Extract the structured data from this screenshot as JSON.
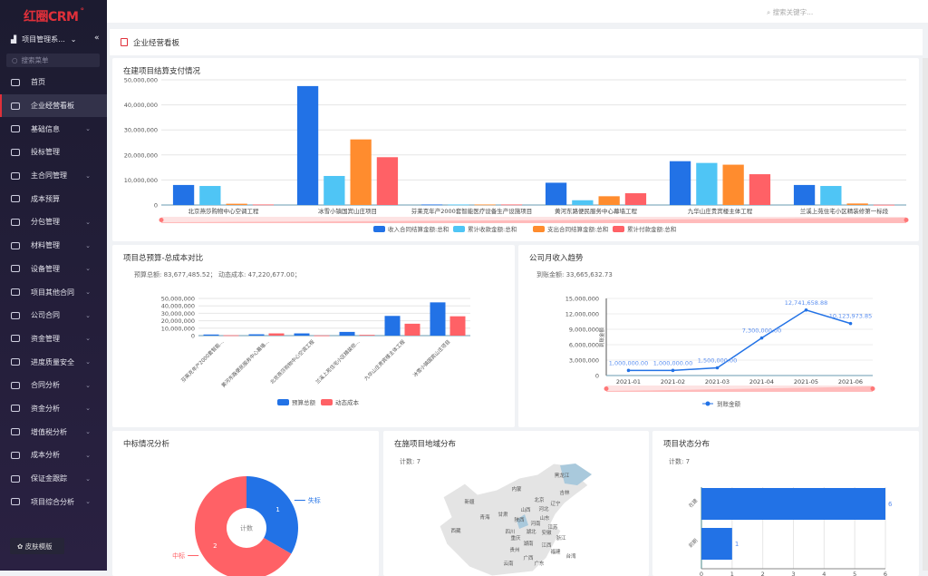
{
  "sidebar": {
    "logo": "红圈CRM",
    "system": "项目管理系...",
    "search_placeholder": "搜索菜单",
    "skin_button": "皮肤模版",
    "items": [
      {
        "label": "首页"
      },
      {
        "label": "企业经营看板",
        "active": true
      },
      {
        "label": "基础信息",
        "expand": true
      },
      {
        "label": "投标管理"
      },
      {
        "label": "主合同管理",
        "expand": true
      },
      {
        "label": "成本预算"
      },
      {
        "label": "分包管理",
        "expand": true
      },
      {
        "label": "材料管理",
        "expand": true
      },
      {
        "label": "设备管理",
        "expand": true
      },
      {
        "label": "项目其他合同",
        "expand": true
      },
      {
        "label": "公司合同",
        "expand": true
      },
      {
        "label": "资金管理",
        "expand": true
      },
      {
        "label": "进度质量安全",
        "expand": true
      },
      {
        "label": "合同分析",
        "expand": true
      },
      {
        "label": "资金分析",
        "expand": true
      },
      {
        "label": "增值税分析",
        "expand": true
      },
      {
        "label": "成本分析",
        "expand": true
      },
      {
        "label": "保证金跟踪",
        "expand": true
      },
      {
        "label": "项目综合分析",
        "expand": true
      }
    ]
  },
  "topbar": {
    "search_placeholder": "搜索关键字..."
  },
  "breadcrumb": {
    "title": "企业经营看板"
  },
  "colors": {
    "blue": "#2272e6",
    "lightblue": "#4fc5f5",
    "orange": "#ff8c2e",
    "red": "#ff6166",
    "accent": "#e0303a"
  },
  "chart_data": [
    {
      "type": "bar",
      "title": "在建项目结算支付情况",
      "ylim": [
        0,
        50000000
      ],
      "yticks": [
        "0",
        "10,000,000",
        "20,000,000",
        "30,000,000",
        "40,000,000",
        "50,000,000"
      ],
      "categories": [
        "北京燕莎购物中心空调工程",
        "冰雪小镇国宾山庄项目",
        "芬莱克年产2000套智能医疗设备生产设施项目",
        "黄河东路便民服务中心幕墙工程",
        "九华山庄贵宾楼主体工程",
        "兰溪上苑住宅小区精装修第一标段"
      ],
      "series": [
        {
          "name": "收入合同结算金额:总和",
          "values": [
            8000000,
            47500000,
            200000,
            8900000,
            17500000,
            8000000
          ]
        },
        {
          "name": "累计收款金额:总和",
          "values": [
            7600000,
            11600000,
            200000,
            1900000,
            16800000,
            7600000
          ]
        },
        {
          "name": "支出合同结算金额:总和",
          "values": [
            500000,
            26200000,
            200000,
            3500000,
            16100000,
            600000
          ]
        },
        {
          "name": "累计付款金额:总和",
          "values": [
            200000,
            19100000,
            200000,
            4700000,
            12300000,
            100000
          ]
        }
      ],
      "legend": "bottom"
    },
    {
      "type": "bar",
      "title": "项目总预算-总成本对比",
      "summary": "预算总额: 83,677,485.52； 动态成本: 47,220,677.00；",
      "ylim": [
        0,
        50000000
      ],
      "yticks": [
        "0",
        "10,000,000",
        "20,000,000",
        "30,000,000",
        "40,000,000",
        "50,000,000"
      ],
      "categories": [
        "芬莱克年产2000套智能...",
        "黄河东路便民服务中心幕墙...",
        "北京燕莎购物中心空调工程",
        "兰溪上苑住宅小区精装修...",
        "九华山庄贵宾楼主体工程",
        "冰雪小镇国宾山庄项目"
      ],
      "series": [
        {
          "name": "预算总额",
          "values": [
            1500000,
            1800000,
            3000000,
            5000000,
            26500000,
            44700000
          ]
        },
        {
          "name": "动态成本",
          "values": [
            500000,
            3000000,
            300000,
            1000000,
            16000000,
            26000000
          ]
        }
      ],
      "legend": "bottom"
    },
    {
      "type": "line",
      "title": "公司月收入趋势",
      "summary": "到账金额: 33,665,632.73",
      "ylabel": "到账金额",
      "ylim": [
        0,
        15000000
      ],
      "yticks": [
        "0",
        "3,000,000",
        "6,000,000",
        "9,000,000",
        "12,000,000",
        "15,000,000"
      ],
      "categories": [
        "2021-01",
        "2021-02",
        "2021-03",
        "2021-04",
        "2021-05",
        "2021-06"
      ],
      "series": [
        {
          "name": "到账金额",
          "values": [
            1000000,
            1000000,
            1500000,
            7300000,
            12741658.88,
            10123973.85
          ],
          "labels": [
            "1,000,000.00",
            "1,000,000.00",
            "1,500,000.00",
            "7,300,000.00",
            "12,741,658.88",
            "10,123,973.85"
          ]
        }
      ],
      "legend": "bottom"
    },
    {
      "type": "pie",
      "title": "中标情况分析",
      "center_label": "计数",
      "slices": [
        {
          "name": "失标",
          "value": 1
        },
        {
          "name": "中标",
          "value": 2
        }
      ]
    },
    {
      "type": "map",
      "title": "在施项目地域分布",
      "summary": "计数: 7",
      "regions": [
        {
          "name": "新疆"
        },
        {
          "name": "西藏"
        },
        {
          "name": "青海"
        },
        {
          "name": "甘肃"
        },
        {
          "name": "内蒙"
        },
        {
          "name": "黑龙江",
          "value": 1
        },
        {
          "name": "吉林"
        },
        {
          "name": "辽宁"
        },
        {
          "name": "北京"
        },
        {
          "name": "河北"
        },
        {
          "name": "山西"
        },
        {
          "name": "陕西",
          "value": 1
        },
        {
          "name": "山东"
        },
        {
          "name": "河南"
        },
        {
          "name": "江苏"
        },
        {
          "name": "安徽"
        },
        {
          "name": "湖北"
        },
        {
          "name": "四川"
        },
        {
          "name": "重庆"
        },
        {
          "name": "浙江"
        },
        {
          "name": "湖南"
        },
        {
          "name": "江西"
        },
        {
          "name": "福建"
        },
        {
          "name": "贵州"
        },
        {
          "name": "云南"
        },
        {
          "name": "广西"
        },
        {
          "name": "广东"
        },
        {
          "name": "台湾"
        }
      ]
    },
    {
      "type": "bar",
      "orientation": "horizontal",
      "title": "项目状态分布",
      "summary": "计数: 7",
      "xlim": [
        0,
        6
      ],
      "xticks": [
        "0",
        "1",
        "2",
        "3",
        "4",
        "5",
        "6"
      ],
      "categories": [
        "在建",
        "前期"
      ],
      "values": [
        6,
        1
      ]
    }
  ]
}
